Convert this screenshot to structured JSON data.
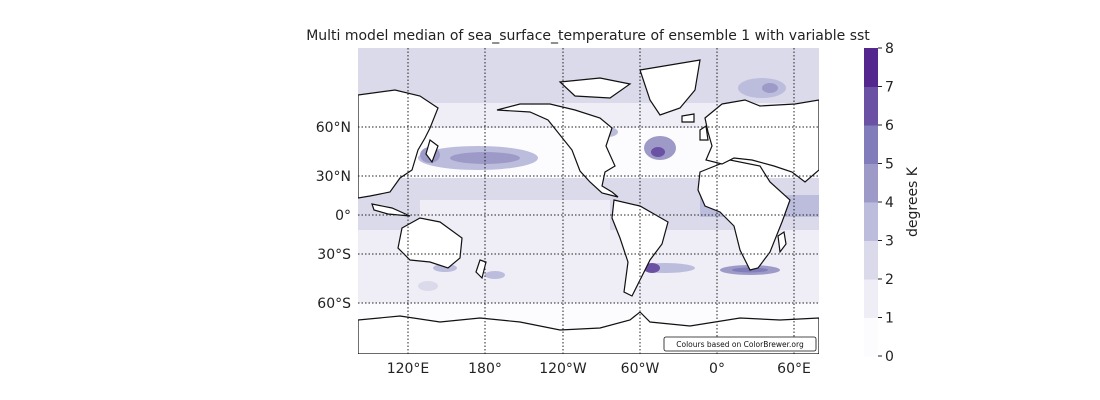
{
  "figure": {
    "title": "Multi model median of sea_surface_temperature of ensemble 1 with variable sst",
    "attribution": "Colours based on ColorBrewer.org"
  },
  "map": {
    "lat_ticks": [
      {
        "value": 60,
        "label": "60°N"
      },
      {
        "value": 30,
        "label": "30°N"
      },
      {
        "value": 0,
        "label": "0°"
      },
      {
        "value": -30,
        "label": "30°S"
      },
      {
        "value": -60,
        "label": "60°S"
      }
    ],
    "lon_ticks": [
      {
        "value": 120,
        "label": "120°E"
      },
      {
        "value": 180,
        "label": "180°"
      },
      {
        "value": -120,
        "label": "120°W"
      },
      {
        "value": -60,
        "label": "60°W"
      },
      {
        "value": 0,
        "label": "0°"
      },
      {
        "value": 60,
        "label": "60°E"
      }
    ],
    "gridlines": true,
    "colorbar": {
      "label": "degrees K",
      "levels": [
        0,
        1,
        2,
        3,
        4,
        5,
        6,
        7,
        8
      ],
      "colors": [
        "#fcfbfd",
        "#efedf5",
        "#dadaeb",
        "#bcbddc",
        "#9e9ac8",
        "#807dba",
        "#6a51a3",
        "#54278f",
        "#3f007d"
      ]
    }
  }
}
